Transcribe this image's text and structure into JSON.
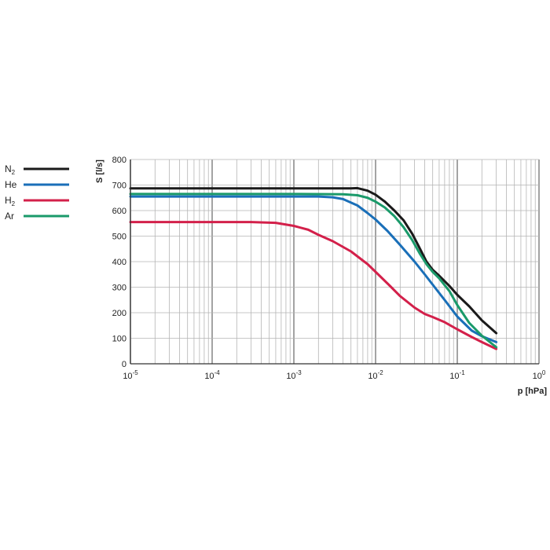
{
  "chart_data": {
    "type": "line",
    "xlabel": "p [hPa]",
    "ylabel": "S [l/s]",
    "x_scale": "log",
    "xlim": [
      1e-05,
      1
    ],
    "ylim": [
      0,
      800
    ],
    "grid": true,
    "legend_position": "left",
    "x_ticks": [
      {
        "base": "10",
        "exp": "-5"
      },
      {
        "base": "10",
        "exp": "-4"
      },
      {
        "base": "10",
        "exp": "-3"
      },
      {
        "base": "10",
        "exp": "-2"
      },
      {
        "base": "10",
        "exp": "-1"
      },
      {
        "base": "10",
        "exp": "0"
      }
    ],
    "y_ticks": [
      "0",
      "100",
      "200",
      "300",
      "400",
      "500",
      "600",
      "700",
      "800"
    ],
    "series": [
      {
        "name": "N",
        "name_sub": "2",
        "color": "#1a1a1a",
        "x": [
          1e-05,
          0.0001,
          0.001,
          0.005,
          0.006,
          0.008,
          0.01,
          0.013,
          0.017,
          0.022,
          0.028,
          0.035,
          0.042,
          0.05,
          0.06,
          0.08,
          0.1,
          0.14,
          0.2,
          0.3
        ],
        "y": [
          687,
          687,
          687,
          687,
          688,
          678,
          662,
          635,
          600,
          562,
          510,
          450,
          400,
          368,
          345,
          305,
          270,
          225,
          170,
          120
        ]
      },
      {
        "name": "He",
        "color": "#1a6fb8",
        "x": [
          1e-05,
          0.0001,
          0.001,
          0.002,
          0.003,
          0.004,
          0.006,
          0.008,
          0.01,
          0.014,
          0.02,
          0.03,
          0.04,
          0.05,
          0.07,
          0.1,
          0.15,
          0.2,
          0.3
        ],
        "y": [
          655,
          655,
          655,
          655,
          652,
          645,
          620,
          590,
          565,
          520,
          465,
          400,
          350,
          310,
          250,
          185,
          130,
          108,
          85
        ]
      },
      {
        "name": "H",
        "name_sub": "2",
        "color": "#d3204a",
        "x": [
          1e-05,
          0.0001,
          0.0003,
          0.0006,
          0.001,
          0.0015,
          0.002,
          0.003,
          0.005,
          0.008,
          0.01,
          0.015,
          0.02,
          0.03,
          0.04,
          0.05,
          0.07,
          0.1,
          0.15,
          0.2,
          0.3
        ],
        "y": [
          555,
          555,
          555,
          552,
          540,
          525,
          505,
          480,
          440,
          390,
          360,
          305,
          265,
          220,
          195,
          183,
          163,
          135,
          105,
          85,
          58
        ]
      },
      {
        "name": "Ar",
        "color": "#1a9a6a",
        "x": [
          1e-05,
          0.0001,
          0.001,
          0.004,
          0.006,
          0.008,
          0.01,
          0.013,
          0.017,
          0.022,
          0.028,
          0.035,
          0.042,
          0.05,
          0.06,
          0.08,
          0.1,
          0.14,
          0.2,
          0.3
        ],
        "y": [
          665,
          665,
          665,
          664,
          660,
          650,
          635,
          612,
          578,
          535,
          485,
          430,
          390,
          360,
          335,
          285,
          230,
          160,
          110,
          65
        ]
      }
    ]
  }
}
